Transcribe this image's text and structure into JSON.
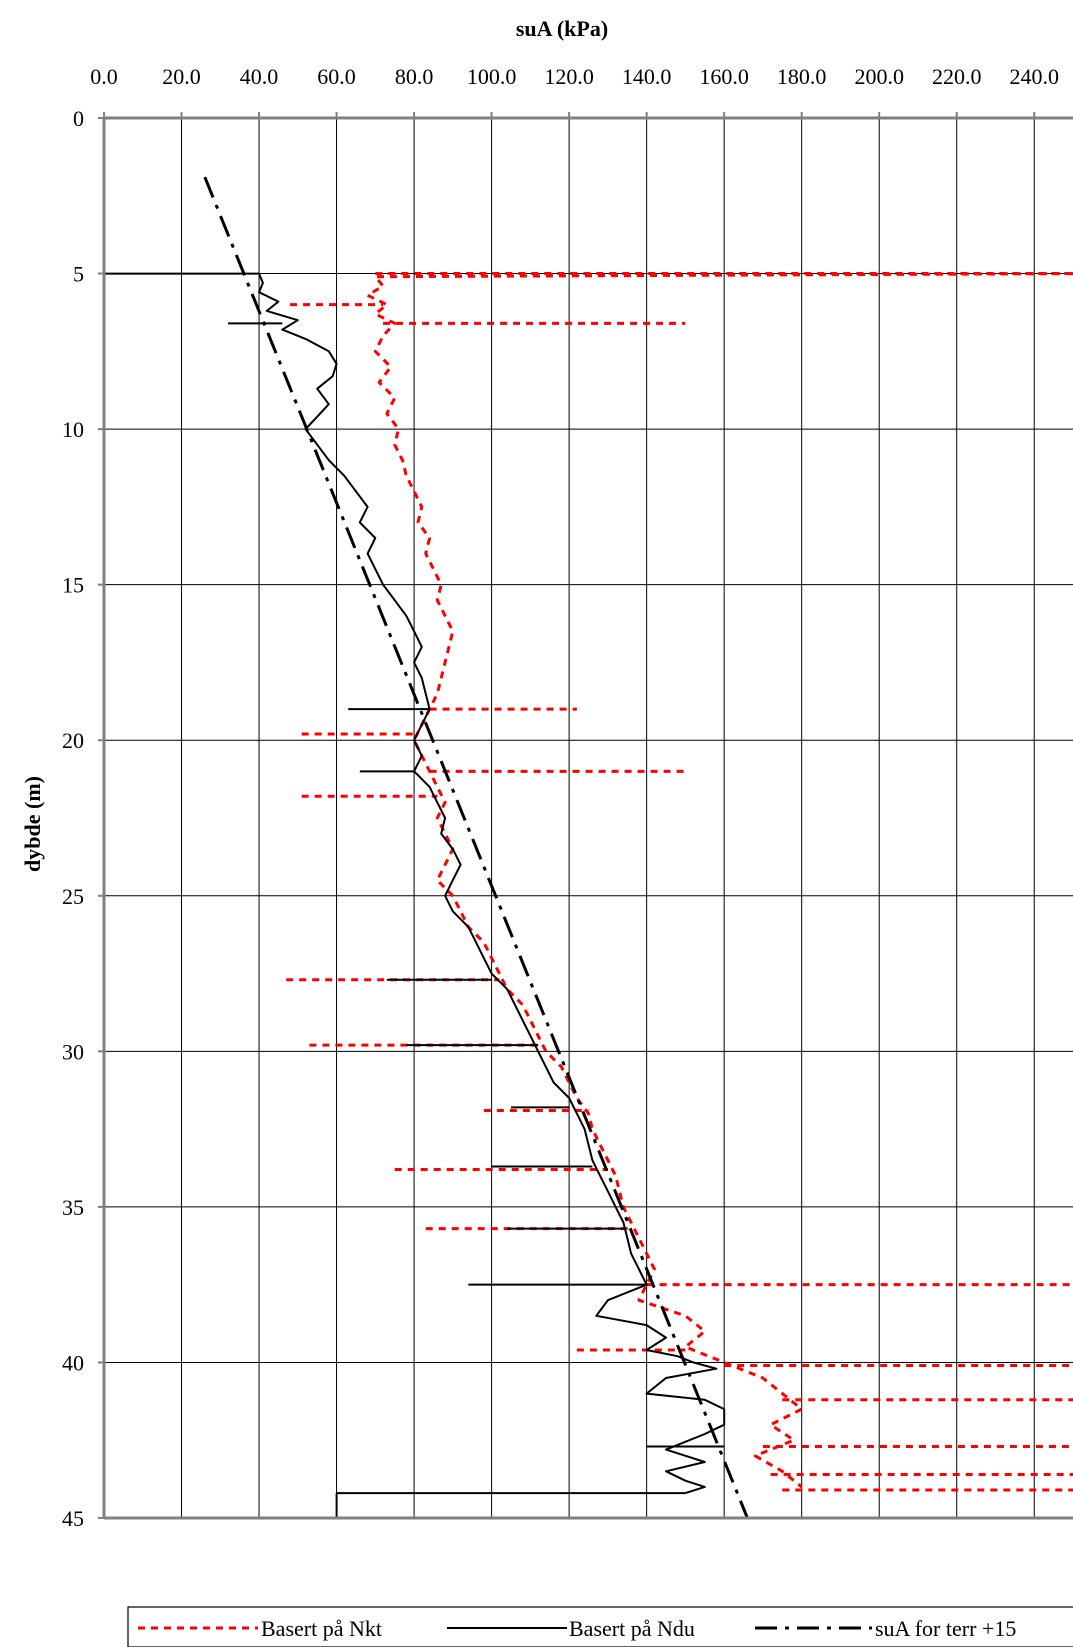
{
  "chart_data": {
    "type": "line",
    "title": "",
    "xlabel": "suA (kPa)",
    "ylabel": "dybde (m)",
    "xlim": [
      0,
      250
    ],
    "ylim": [
      0,
      45
    ],
    "y_inverted": true,
    "x_axis_position": "top",
    "grid": true,
    "legend_position": "bottom",
    "x_ticks": [
      "0.0",
      "20.0",
      "40.0",
      "60.0",
      "80.0",
      "100.0",
      "120.0",
      "140.0",
      "160.0",
      "180.0",
      "200.0",
      "220.0",
      "240.0"
    ],
    "y_ticks": [
      "0",
      "5",
      "10",
      "15",
      "20",
      "25",
      "30",
      "35",
      "40",
      "45"
    ],
    "series": [
      {
        "name": "Basert på Nkt",
        "color": "#ff0000",
        "style": "dotted",
        "points": [
          [
            250,
            5.0
          ],
          [
            70,
            5.1
          ],
          [
            72,
            5.4
          ],
          [
            68,
            5.7
          ],
          [
            73,
            6.0
          ],
          [
            70,
            6.3
          ],
          [
            75,
            6.6
          ],
          [
            72,
            7.0
          ],
          [
            70,
            7.5
          ],
          [
            74,
            8.0
          ],
          [
            71,
            8.5
          ],
          [
            75,
            9.0
          ],
          [
            73,
            9.5
          ],
          [
            76,
            10.0
          ],
          [
            75,
            10.5
          ],
          [
            77,
            11.0
          ],
          [
            78,
            11.5
          ],
          [
            80,
            12.0
          ],
          [
            82,
            12.5
          ],
          [
            81,
            13.0
          ],
          [
            84,
            13.5
          ],
          [
            83,
            14.0
          ],
          [
            85,
            14.5
          ],
          [
            87,
            15.0
          ],
          [
            86,
            15.5
          ],
          [
            88,
            16.0
          ],
          [
            90,
            16.5
          ],
          [
            89,
            17.0
          ],
          [
            88,
            17.5
          ],
          [
            87,
            18.0
          ],
          [
            86,
            18.5
          ],
          [
            84,
            19.0
          ],
          [
            82,
            19.5
          ],
          [
            80,
            20.0
          ],
          [
            82,
            20.5
          ],
          [
            84,
            21.0
          ],
          [
            86,
            21.5
          ],
          [
            88,
            22.0
          ],
          [
            86,
            22.5
          ],
          [
            88,
            23.0
          ],
          [
            90,
            23.5
          ],
          [
            88,
            24.0
          ],
          [
            86,
            24.5
          ],
          [
            90,
            25.0
          ],
          [
            92,
            25.5
          ],
          [
            94,
            26.0
          ],
          [
            98,
            26.5
          ],
          [
            100,
            27.0
          ],
          [
            102,
            27.5
          ],
          [
            104,
            28.0
          ],
          [
            108,
            28.5
          ],
          [
            110,
            29.0
          ],
          [
            112,
            29.5
          ],
          [
            114,
            30.0
          ],
          [
            118,
            30.5
          ],
          [
            120,
            31.0
          ],
          [
            122,
            31.5
          ],
          [
            125,
            32.0
          ],
          [
            126,
            32.5
          ],
          [
            128,
            33.0
          ],
          [
            130,
            33.5
          ],
          [
            132,
            34.0
          ],
          [
            133,
            34.5
          ],
          [
            134,
            35.0
          ],
          [
            136,
            35.5
          ],
          [
            138,
            36.0
          ],
          [
            140,
            36.5
          ],
          [
            142,
            37.0
          ],
          [
            140,
            37.5
          ],
          [
            138,
            38.0
          ],
          [
            150,
            38.5
          ],
          [
            155,
            39.0
          ],
          [
            150,
            39.5
          ],
          [
            160,
            40.0
          ],
          [
            170,
            40.5
          ],
          [
            175,
            41.0
          ],
          [
            180,
            41.5
          ],
          [
            172,
            42.0
          ],
          [
            178,
            42.5
          ],
          [
            168,
            43.0
          ],
          [
            175,
            43.5
          ],
          [
            180,
            44.0
          ]
        ],
        "spikes": [
          {
            "depth": 5.0,
            "from": 70,
            "to": 250
          },
          {
            "depth": 6.0,
            "from": 48,
            "to": 72
          },
          {
            "depth": 6.6,
            "from": 72,
            "to": 150
          },
          {
            "depth": 19.0,
            "from": 84,
            "to": 122
          },
          {
            "depth": 19.8,
            "from": 51,
            "to": 80
          },
          {
            "depth": 21.0,
            "from": 84,
            "to": 151
          },
          {
            "depth": 21.8,
            "from": 51,
            "to": 86
          },
          {
            "depth": 27.7,
            "from": 47,
            "to": 102
          },
          {
            "depth": 29.8,
            "from": 53,
            "to": 112
          },
          {
            "depth": 31.9,
            "from": 98,
            "to": 125
          },
          {
            "depth": 33.8,
            "from": 75,
            "to": 130
          },
          {
            "depth": 35.7,
            "from": 83,
            "to": 136
          },
          {
            "depth": 37.5,
            "from": 140,
            "to": 250
          },
          {
            "depth": 39.6,
            "from": 122,
            "to": 150
          },
          {
            "depth": 40.1,
            "from": 160,
            "to": 250
          },
          {
            "depth": 41.2,
            "from": 175,
            "to": 250
          },
          {
            "depth": 42.7,
            "from": 170,
            "to": 250
          },
          {
            "depth": 43.6,
            "from": 172,
            "to": 250
          },
          {
            "depth": 44.1,
            "from": 175,
            "to": 250
          }
        ]
      },
      {
        "name": "Basert på Ndu",
        "color": "#000000",
        "style": "solid",
        "points": [
          [
            0,
            0
          ],
          [
            0,
            5.0
          ],
          [
            40,
            5.0
          ],
          [
            41,
            5.3
          ],
          [
            40,
            5.6
          ],
          [
            45,
            5.9
          ],
          [
            42,
            6.2
          ],
          [
            50,
            6.5
          ],
          [
            46,
            6.8
          ],
          [
            52,
            7.1
          ],
          [
            58,
            7.5
          ],
          [
            60,
            7.9
          ],
          [
            59,
            8.3
          ],
          [
            55,
            8.7
          ],
          [
            58,
            9.2
          ],
          [
            55,
            9.6
          ],
          [
            52,
            10.0
          ],
          [
            55,
            10.5
          ],
          [
            58,
            11.0
          ],
          [
            62,
            11.5
          ],
          [
            65,
            12.0
          ],
          [
            68,
            12.5
          ],
          [
            66,
            13.0
          ],
          [
            70,
            13.5
          ],
          [
            68,
            14.0
          ],
          [
            70,
            14.5
          ],
          [
            72,
            15.0
          ],
          [
            75,
            15.5
          ],
          [
            78,
            16.0
          ],
          [
            80,
            16.5
          ],
          [
            82,
            17.0
          ],
          [
            80,
            17.5
          ],
          [
            82,
            18.0
          ],
          [
            83,
            18.5
          ],
          [
            84,
            19.0
          ],
          [
            82,
            19.5
          ],
          [
            80,
            20.0
          ],
          [
            82,
            20.5
          ],
          [
            80,
            21.0
          ],
          [
            84,
            21.5
          ],
          [
            86,
            22.0
          ],
          [
            88,
            22.5
          ],
          [
            87,
            23.0
          ],
          [
            90,
            23.5
          ],
          [
            92,
            24.0
          ],
          [
            90,
            24.5
          ],
          [
            88,
            25.0
          ],
          [
            90,
            25.5
          ],
          [
            94,
            26.0
          ],
          [
            96,
            26.5
          ],
          [
            98,
            27.0
          ],
          [
            100,
            27.5
          ],
          [
            104,
            28.0
          ],
          [
            106,
            28.5
          ],
          [
            108,
            29.0
          ],
          [
            110,
            29.5
          ],
          [
            112,
            30.0
          ],
          [
            114,
            30.5
          ],
          [
            116,
            31.0
          ],
          [
            120,
            31.5
          ],
          [
            122,
            32.0
          ],
          [
            124,
            32.5
          ],
          [
            125,
            33.0
          ],
          [
            126,
            33.5
          ],
          [
            128,
            34.0
          ],
          [
            130,
            34.5
          ],
          [
            132,
            35.0
          ],
          [
            134,
            35.5
          ],
          [
            135,
            36.0
          ],
          [
            136,
            36.5
          ],
          [
            138,
            37.0
          ],
          [
            140,
            37.5
          ],
          [
            130,
            38.0
          ],
          [
            127,
            38.5
          ],
          [
            140,
            38.8
          ],
          [
            145,
            39.2
          ],
          [
            140,
            39.6
          ],
          [
            148,
            39.8
          ],
          [
            152,
            40.0
          ],
          [
            158,
            40.2
          ],
          [
            145,
            40.5
          ],
          [
            140,
            41.0
          ],
          [
            155,
            41.2
          ],
          [
            160,
            41.5
          ],
          [
            160,
            42.0
          ],
          [
            155,
            42.3
          ],
          [
            145,
            42.8
          ],
          [
            155,
            43.2
          ],
          [
            145,
            43.5
          ],
          [
            150,
            43.8
          ],
          [
            155,
            44.0
          ],
          [
            150,
            44.2
          ]
        ],
        "spikes": [
          {
            "depth": 6.6,
            "from": 32,
            "to": 46
          },
          {
            "depth": 19.0,
            "from": 63,
            "to": 84
          },
          {
            "depth": 21.0,
            "from": 66,
            "to": 80
          },
          {
            "depth": 27.7,
            "from": 73,
            "to": 100
          },
          {
            "depth": 29.8,
            "from": 78,
            "to": 112
          },
          {
            "depth": 31.8,
            "from": 105,
            "to": 120
          },
          {
            "depth": 33.7,
            "from": 100,
            "to": 126
          },
          {
            "depth": 35.7,
            "from": 104,
            "to": 134
          },
          {
            "depth": 37.5,
            "from": 94,
            "to": 140
          },
          {
            "depth": 42.7,
            "from": 140,
            "to": 160
          },
          {
            "depth": 44.2,
            "from": 60,
            "to": 150
          }
        ],
        "tail": [
          [
            60,
            44.2
          ],
          [
            60,
            45
          ]
        ]
      },
      {
        "name": "suA for terr +15",
        "color": "#000000",
        "style": "dash-dot",
        "points": [
          [
            26,
            1.9
          ],
          [
            166,
            45
          ]
        ]
      }
    ]
  }
}
